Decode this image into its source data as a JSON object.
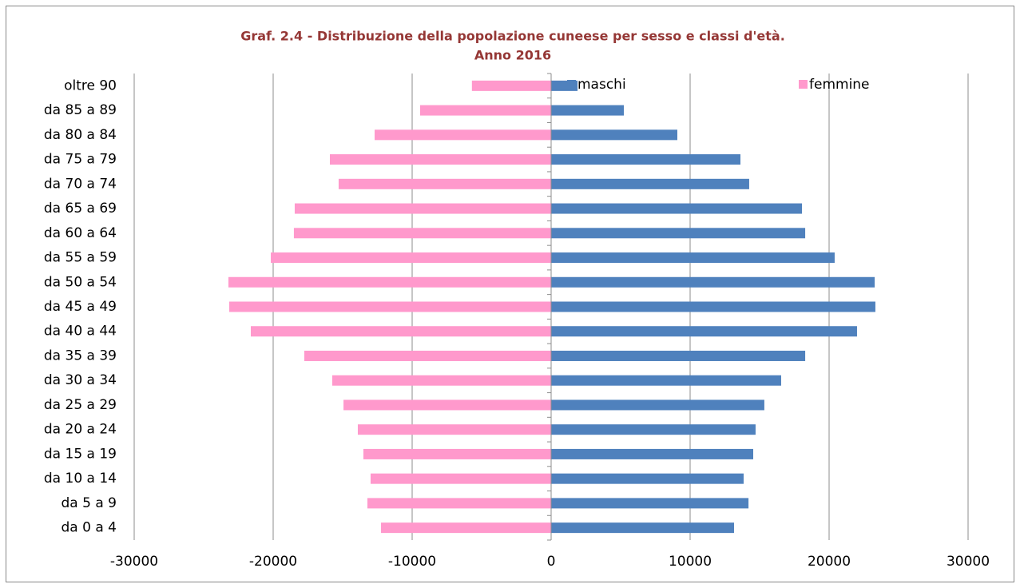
{
  "chart_data": {
    "type": "bar",
    "orientation": "horizontal",
    "title": [
      "Graf. 2.4 - Distribuzione della popolazione cuneese per sesso e classi d'età.",
      "Anno 2016"
    ],
    "categories": [
      "da 0 a 4",
      "da 5 a 9",
      "da 10 a 14",
      "da 15 a 19",
      "da 20 a 24",
      "da 25 a 29",
      "da 30 a 34",
      "da 35 a 39",
      "da 40 a 44",
      "da 45 a 49",
      "da 50 a 54",
      "da 55 a 59",
      "da 60 a 64",
      "da 65 a 69",
      "da 70 a 74",
      "da 75 a 79",
      "da 80 a 84",
      "da 85 a 89",
      "oltre 90"
    ],
    "series": [
      {
        "name": "maschi",
        "color": "#4f81bd",
        "values": [
          13160,
          14200,
          13850,
          14540,
          14710,
          15340,
          16550,
          18280,
          22010,
          23330,
          23280,
          20400,
          18280,
          18050,
          14250,
          13620,
          9080,
          5230,
          1900
        ]
      },
      {
        "name": "femmine",
        "color": "#ff99cc",
        "values": [
          -12240,
          -13220,
          -12990,
          -13510,
          -13910,
          -14940,
          -15750,
          -17760,
          -21610,
          -23160,
          -23220,
          -20170,
          -18510,
          -18450,
          -15290,
          -15920,
          -12700,
          -9430,
          -5700
        ]
      }
    ],
    "xlim": [
      -30000,
      30000
    ],
    "xticks": [
      -30000,
      -20000,
      -10000,
      0,
      10000,
      20000,
      30000
    ],
    "grid": true,
    "legend": "top-right"
  }
}
